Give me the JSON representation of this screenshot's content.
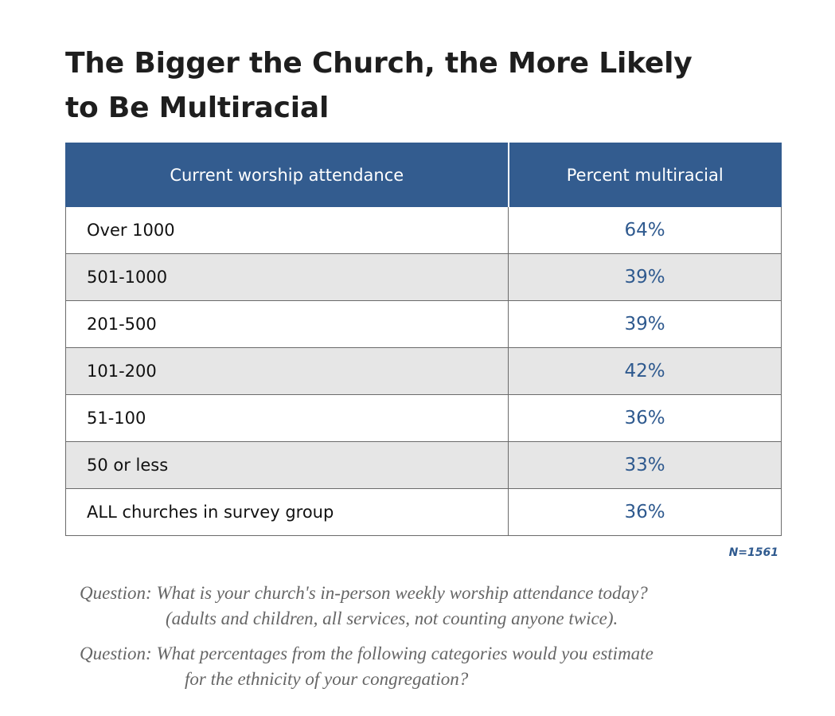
{
  "chart_data": {
    "type": "table",
    "title": "The Bigger the Church, the More Likely to Be Multiracial",
    "columns": [
      "Current worship attendance",
      "Percent multiracial"
    ],
    "rows": [
      {
        "category": "Over 1000",
        "value": "64%"
      },
      {
        "category": "501-1000",
        "value": "39%"
      },
      {
        "category": "201-500",
        "value": "39%"
      },
      {
        "category": "101-200",
        "value": "42%"
      },
      {
        "category": "51-100",
        "value": "36%"
      },
      {
        "category": "50 or less",
        "value": "33%"
      },
      {
        "category": "ALL churches in survey group",
        "value": "36%"
      }
    ],
    "categories": [
      "Over 1000",
      "501-1000",
      "201-500",
      "101-200",
      "51-100",
      "50 or less",
      "ALL churches in survey group"
    ],
    "values": [
      64,
      39,
      39,
      42,
      36,
      33,
      36
    ]
  },
  "title_lines": [
    "The Bigger the Church, the More Likely",
    "to Be Multiracial"
  ],
  "sample_note": "N=1561",
  "questions": [
    {
      "line1": "Question: What is your church's in-person weekly worship attendance today?",
      "line2": "(adults and children, all services, not counting anyone twice)."
    },
    {
      "line1": "Question: What percentages from the following categories would you estimate",
      "line2": "for the ethnicity of your congregation?"
    }
  ],
  "colors": {
    "header_bg": "#335c8f",
    "value_text": "#2f5a8f",
    "stripe_bg": "#e6e6e6"
  }
}
